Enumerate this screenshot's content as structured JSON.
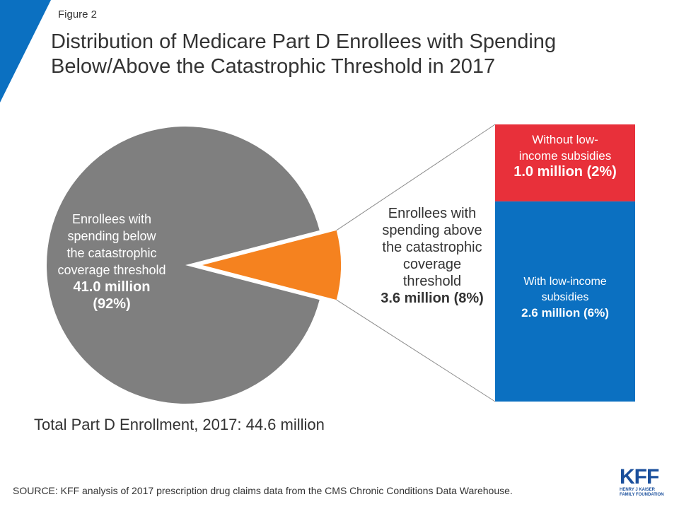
{
  "figure_label": "Figure 2",
  "title_line1": "Distribution of Medicare Part D Enrollees with Spending",
  "title_line2": "Below/Above the Catastrophic Threshold in 2017",
  "total_text": "Total Part D Enrollment, 2017: 44.6 million",
  "source_text": "SOURCE: KFF analysis of 2017 prescription drug claims data from the CMS Chronic Conditions Data Warehouse.",
  "logo": {
    "main": "KFF",
    "sub1": "HENRY J KAISER",
    "sub2": "FAMILY FOUNDATION"
  },
  "labels": {
    "below": {
      "l1": "Enrollees with",
      "l2": "spending below",
      "l3": "the catastrophic",
      "l4": "coverage threshold",
      "value": "41.0 million",
      "pct": "(92%)"
    },
    "above": {
      "l1": "Enrollees with",
      "l2": "spending above",
      "l3": "the catastrophic",
      "l4": "coverage",
      "l5": "threshold",
      "value": "3.6 million (8%)"
    },
    "without": {
      "l1": "Without low-",
      "l2": "income subsidies",
      "value": "1.0 million (2%)"
    },
    "with": {
      "l1": "With low-income",
      "l2": "subsidies",
      "value": "2.6 million  (6%)"
    }
  },
  "colors": {
    "below": "#7f7f7f",
    "above": "#f5821f",
    "without": "#e8303a",
    "with": "#0b70c1",
    "accent": "#0b70c1"
  },
  "chart_data": {
    "type": "pie",
    "total": 44.6,
    "unit": "million",
    "slices": [
      {
        "label": "Enrollees with spending below the catastrophic coverage threshold",
        "value": 41.0,
        "percent": 92
      },
      {
        "label": "Enrollees with spending above the catastrophic coverage threshold",
        "value": 3.6,
        "percent": 8
      }
    ],
    "breakdown": {
      "of": "Enrollees with spending above the catastrophic coverage threshold",
      "type": "stacked-bar",
      "segments": [
        {
          "label": "Without low-income subsidies",
          "value": 1.0,
          "percent": 2
        },
        {
          "label": "With low-income subsidies",
          "value": 2.6,
          "percent": 6
        }
      ]
    }
  }
}
